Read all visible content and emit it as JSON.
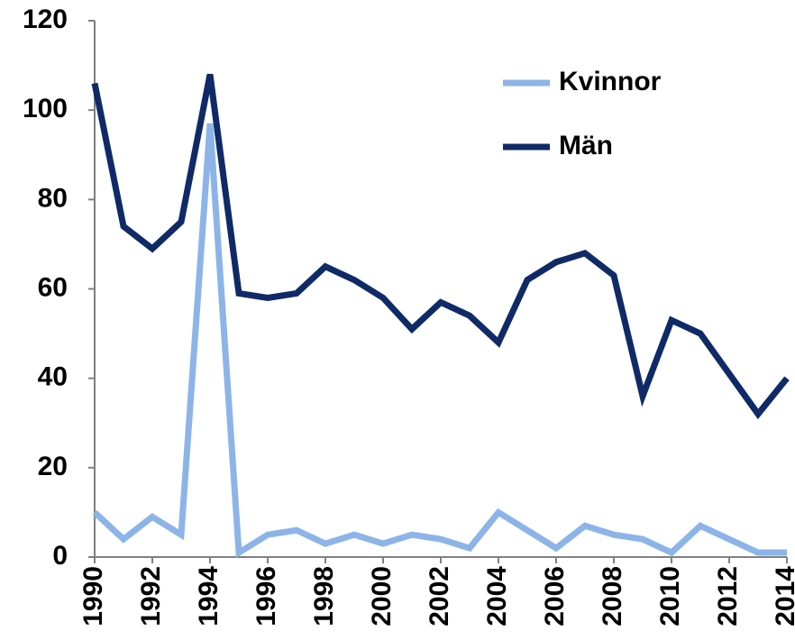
{
  "chart_data": {
    "type": "line",
    "x": [
      1990,
      1991,
      1992,
      1993,
      1994,
      1995,
      1996,
      1997,
      1998,
      1999,
      2000,
      2001,
      2002,
      2003,
      2004,
      2005,
      2006,
      2007,
      2008,
      2009,
      2010,
      2011,
      2012,
      2013,
      2014
    ],
    "series": [
      {
        "name": "Kvinnor",
        "color": "#8db4e8",
        "values": [
          10,
          4,
          9,
          5,
          97,
          1,
          5,
          6,
          3,
          5,
          3,
          5,
          4,
          2,
          10,
          6,
          2,
          7,
          5,
          4,
          1,
          7,
          4,
          1,
          1
        ]
      },
      {
        "name": "Män",
        "color": "#0f2a66",
        "values": [
          106,
          74,
          69,
          75,
          108,
          59,
          58,
          59,
          65,
          62,
          58,
          51,
          57,
          54,
          48,
          62,
          66,
          68,
          63,
          36,
          53,
          50,
          41,
          32,
          40
        ]
      }
    ],
    "xlim": [
      1990,
      2014
    ],
    "xticks": [
      1990,
      1992,
      1994,
      1996,
      1998,
      2000,
      2002,
      2004,
      2006,
      2008,
      2010,
      2012,
      2014
    ],
    "ylim": [
      0,
      120
    ],
    "yticks": [
      0,
      20,
      40,
      60,
      80,
      100,
      120
    ],
    "grid": false,
    "legend": "upper right"
  }
}
